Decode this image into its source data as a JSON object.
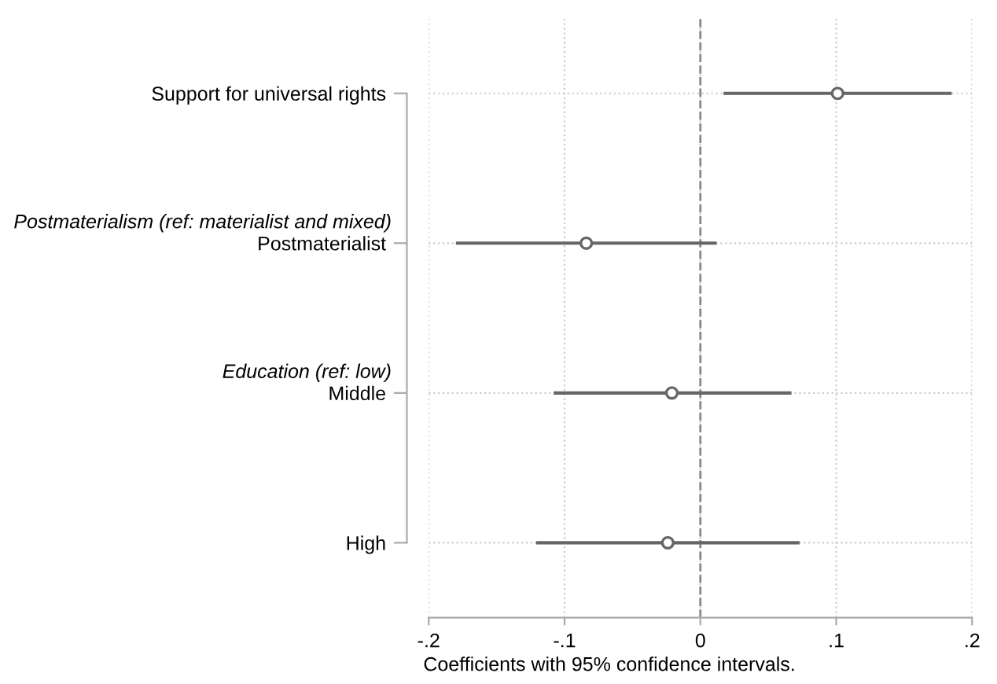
{
  "chart_data": {
    "type": "scatter",
    "orientation": "horizontal",
    "categories": [
      "Support for universal rights",
      "Postmaterialist",
      "Middle",
      "High"
    ],
    "values": [
      0.101,
      -0.084,
      -0.021,
      -0.024
    ],
    "errors": [
      [
        0.017,
        0.185
      ],
      [
        -0.18,
        0.012
      ],
      [
        -0.108,
        0.067
      ],
      [
        -0.121,
        0.073
      ]
    ],
    "color": "#666666",
    "marker": "circle",
    "xlim": [
      -0.2,
      0.2
    ],
    "xticks": [
      {
        "value": -0.2,
        "label": "-.2"
      },
      {
        "value": -0.1,
        "label": "-.1"
      },
      {
        "value": 0,
        "label": "0"
      },
      {
        "value": 0.1,
        "label": ".1"
      },
      {
        "value": 0.2,
        "label": ".2"
      }
    ],
    "xlabel": "Coefficients with 95% confidence intervals.",
    "ref_lines": [
      {
        "axis": "x",
        "value": 0,
        "label": null,
        "color": "#888888",
        "line_style": "dashed"
      }
    ],
    "annotations": [
      "Postmaterialism (ref: materialist and mixed)",
      "Education (ref: low)"
    ],
    "grid": true,
    "legend": false
  }
}
